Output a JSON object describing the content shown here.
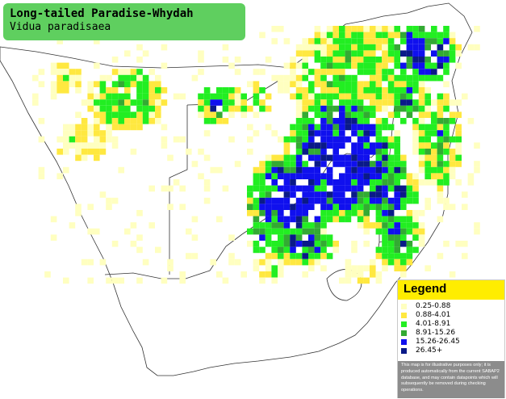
{
  "title": {
    "common_name": "Long-tailed Paradise-Whydah",
    "scientific_name": "Vidua paradisaea"
  },
  "legend": {
    "title": "Legend",
    "items": [
      {
        "label": "0.25-0.88",
        "color": "#ffffc0"
      },
      {
        "label": "0.88-4.01",
        "color": "#ffe840"
      },
      {
        "label": "4.01-8.91",
        "color": "#22ee22"
      },
      {
        "label": "8.91-15.26",
        "color": "#33aa33"
      },
      {
        "label": "15.26-26.45",
        "color": "#1010ee"
      },
      {
        "label": "26.45+",
        "color": "#0a1a88"
      }
    ],
    "note": "This map is for illustrative purposes only; it is produced automatically from the current SABAP2 database, and may contain datapoints which will subsequently be removed during checking operations."
  },
  "map": {
    "land_color": "#ffffff",
    "outline_color": "#333333",
    "grid_color": "#ffffff"
  }
}
